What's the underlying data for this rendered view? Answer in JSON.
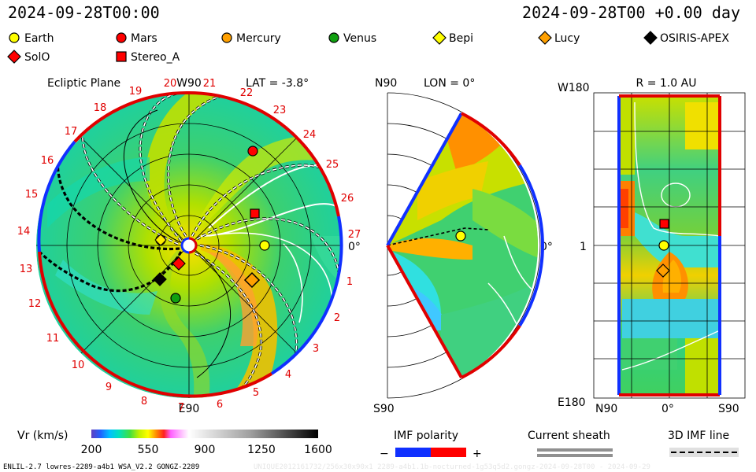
{
  "header": {
    "left_time": "2024-09-28T00:00",
    "right_time": "2024-09-28T00 +0.00 day"
  },
  "legend": [
    {
      "label": "Earth",
      "icon": "circle",
      "color": "#ffff00"
    },
    {
      "label": "Mars",
      "icon": "circle",
      "color": "#ff0000"
    },
    {
      "label": "Mercury",
      "icon": "circle",
      "color": "#ffa000"
    },
    {
      "label": "Venus",
      "icon": "circle",
      "color": "#10a010"
    },
    {
      "label": "Bepi",
      "icon": "diamond",
      "color": "#ffff00"
    },
    {
      "label": "Lucy",
      "icon": "diamond",
      "color": "#ffa000"
    },
    {
      "label": "OSIRIS-APEX",
      "icon": "diamond",
      "color": "#000000"
    },
    {
      "label": "SolO",
      "icon": "diamond",
      "color": "#ff0000"
    },
    {
      "label": "Stereo_A",
      "icon": "square",
      "color": "#ff0000"
    }
  ],
  "ecliptic": {
    "title": "Ecliptic Plane",
    "lat": "LAT = -3.8°",
    "top": "W90",
    "bottom": "E90",
    "right": "0°",
    "ring_labels": [
      "19",
      "20",
      "21",
      "22",
      "23",
      "24",
      "25",
      "26",
      "27",
      "1",
      "2",
      "3",
      "4",
      "5",
      "6",
      "7",
      "8",
      "9",
      "10",
      "11",
      "12",
      "13",
      "14",
      "15",
      "16",
      "17",
      "18"
    ]
  },
  "meridional": {
    "top": "N90",
    "bottom": "S90",
    "lon": "LON = 0°",
    "right": "0°"
  },
  "map": {
    "title": "R = 1.0 AU",
    "y_top": "W180",
    "y_mid": "1",
    "y_bottom": "E180",
    "x_left": "N90",
    "x_mid": "0°",
    "x_right": "S90"
  },
  "colorbar": {
    "label": "Vr (km/s)",
    "ticks": [
      "200",
      "550",
      "900",
      "1250",
      "1600"
    ]
  },
  "imf": {
    "label": "IMF polarity",
    "minus": "−",
    "plus": "+"
  },
  "sheath": {
    "label": "Current sheath"
  },
  "imf3d": {
    "label": "3D IMF line"
  },
  "footer": {
    "left": "ENLIL-2.7 lowres-2289-a4b1 WSA_V2.2 GONGZ-2289",
    "right": "UNIQUE2012161732/256x30x90x1 2289-a4b1.1b-nocturned-1g53q5d2.gongz-2024-09-28T00 - 2024-09-29"
  }
}
